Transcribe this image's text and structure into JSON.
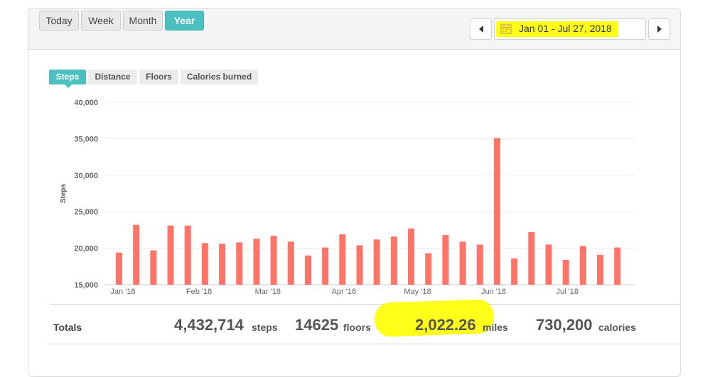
{
  "range_tabs": [
    "Today",
    "Week",
    "Month",
    "Year"
  ],
  "range_active": "Year",
  "date_range": "Jan 01 - Jul 27, 2018",
  "metric_tabs": [
    "Steps",
    "Distance",
    "Floors",
    "Calories burned"
  ],
  "metric_active": "Steps",
  "totals": {
    "label": "Totals",
    "steps_value": "4,432,714",
    "steps_unit": "steps",
    "floors_value": "14625",
    "floors_unit": "floors",
    "miles_value": "2,022.26",
    "miles_unit": "miles",
    "calories_value": "730,200",
    "calories_unit": "calories"
  },
  "colors": {
    "accent": "#4cc0c0",
    "bar": "#ff7466",
    "highlight": "#ffff1a"
  },
  "chart_data": {
    "type": "bar",
    "ylabel": "Steps",
    "ylim": [
      15000,
      40000
    ],
    "yticks": [
      15000,
      20000,
      25000,
      30000,
      35000,
      40000
    ],
    "ytick_labels": [
      "15,000",
      "20,000",
      "25,000",
      "30,000",
      "35,000",
      "40,000"
    ],
    "x_start": "2018-01-01",
    "x_end": "2018-07-27",
    "xtick_dates": [
      "2018-01-01",
      "2018-02-01",
      "2018-03-01",
      "2018-04-01",
      "2018-05-01",
      "2018-06-01",
      "2018-07-01"
    ],
    "xtick_labels": [
      "Jan '18",
      "Feb '18",
      "Mar '18",
      "Apr '18",
      "May '18",
      "Jun '18",
      "Jul '18"
    ],
    "grid": true,
    "series": [
      {
        "dates": [
          "2018-01-01",
          "2018-01-08",
          "2018-01-15",
          "2018-01-22",
          "2018-01-29",
          "2018-02-05",
          "2018-02-12",
          "2018-02-19",
          "2018-02-26",
          "2018-03-05",
          "2018-03-12",
          "2018-03-19",
          "2018-03-26",
          "2018-04-02",
          "2018-04-09",
          "2018-04-16",
          "2018-04-23",
          "2018-04-30",
          "2018-05-07",
          "2018-05-14",
          "2018-05-21",
          "2018-05-28",
          "2018-06-04",
          "2018-06-11",
          "2018-06-18",
          "2018-06-25",
          "2018-07-02",
          "2018-07-09",
          "2018-07-16",
          "2018-07-23"
        ],
        "values": [
          19400,
          23200,
          19700,
          23100,
          23100,
          20700,
          20600,
          20800,
          21300,
          21700,
          20900,
          19000,
          20100,
          21900,
          20400,
          21200,
          21600,
          22700,
          19300,
          21800,
          20900,
          20500,
          35100,
          18600,
          22200,
          20500,
          18400,
          20300,
          19100,
          20100
        ]
      }
    ]
  }
}
